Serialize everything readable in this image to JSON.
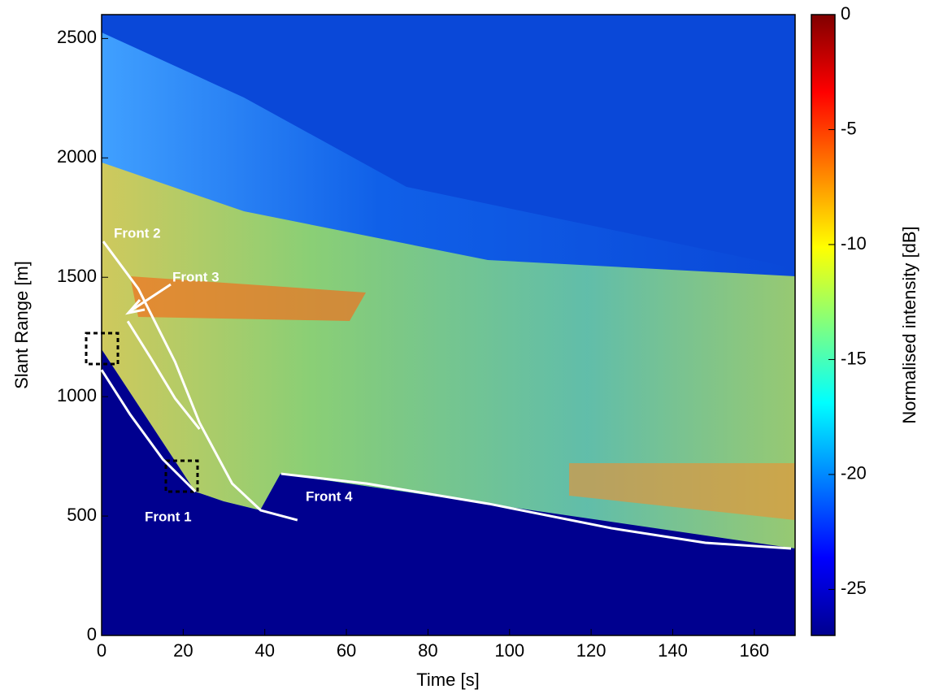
{
  "chart_data": {
    "type": "heatmap",
    "colormap": "jet",
    "xlabel": "Time [s]",
    "ylabel": "Slant Range [m]",
    "xlim": [
      0,
      170
    ],
    "xticks": [
      0,
      20,
      40,
      60,
      80,
      100,
      120,
      140,
      160
    ],
    "ylim": [
      0,
      2600
    ],
    "yticks": [
      0,
      500,
      1000,
      1500,
      2000,
      2500
    ],
    "colorbar": {
      "label": "Normalised intensity [dB]",
      "clim": [
        -27,
        0
      ],
      "ticks": [
        0,
        -5,
        -10,
        -15,
        -20,
        -25
      ]
    },
    "series": [
      {
        "name": "Front 1",
        "color": "#ffffff",
        "x": [
          0,
          7,
          15,
          23
        ],
        "values": [
          1112,
          925,
          738,
          602
        ]
      },
      {
        "name": "Front 2",
        "color": "#ffffff",
        "x": [
          0.4,
          9,
          18,
          24,
          32,
          39,
          48
        ],
        "values": [
          1650,
          1452,
          1146,
          891,
          636,
          524,
          483
        ]
      },
      {
        "name": "Front 3",
        "color": "#ffffff",
        "x": [
          6.4,
          12,
          18,
          24
        ],
        "values": [
          1316,
          1163,
          993,
          864
        ]
      },
      {
        "name": "Front 4",
        "color": "#ffffff",
        "x": [
          44,
          65,
          95,
          125,
          148,
          169
        ],
        "values": [
          677,
          636,
          551,
          449,
          388,
          364
        ]
      }
    ]
  }
}
